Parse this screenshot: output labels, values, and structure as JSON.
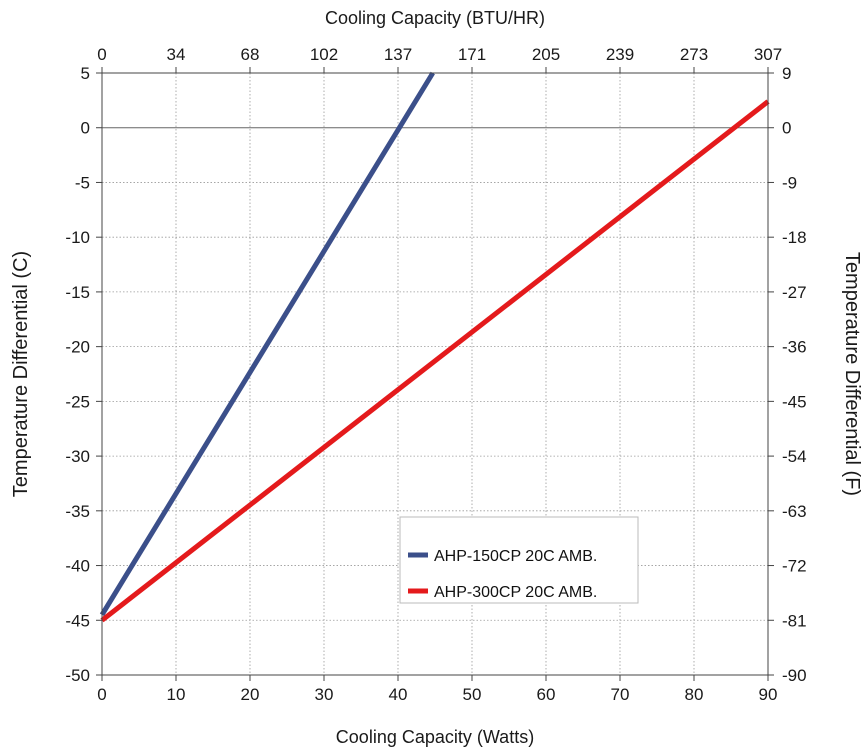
{
  "chart_data": {
    "type": "line",
    "x_bottom": {
      "label": "Cooling Capacity (Watts)",
      "range": [
        0,
        90
      ],
      "ticks": [
        "0",
        "10",
        "20",
        "30",
        "40",
        "50",
        "60",
        "70",
        "80",
        "90"
      ]
    },
    "x_top": {
      "label": "Cooling Capacity (BTU/HR)",
      "ticks": [
        "0",
        "34",
        "68",
        "102",
        "137",
        "171",
        "205",
        "239",
        "273",
        "307"
      ]
    },
    "y_left": {
      "label": "Temperature Differential (C)",
      "range": [
        -50,
        5
      ],
      "ticks": [
        "5",
        "0",
        "-5",
        "-10",
        "-15",
        "-20",
        "-25",
        "-30",
        "-35",
        "-40",
        "-45",
        "-50"
      ]
    },
    "y_right": {
      "label": "Temperature Differential (F)",
      "ticks": [
        "9",
        "0",
        "-9",
        "-18",
        "-27",
        "-36",
        "-45",
        "-54",
        "-63",
        "-72",
        "-81",
        "-90"
      ]
    },
    "grid": true,
    "legend_position": "lower-center-right",
    "series": [
      {
        "name": "AHP-150CP 20C AMB.",
        "color": "#3b4f8a",
        "x": [
          0,
          44.7
        ],
        "y": [
          -44.5,
          5
        ]
      },
      {
        "name": "AHP-300CP 20C AMB.",
        "color": "#e41a1c",
        "x": [
          0,
          90
        ],
        "y": [
          -45,
          2.4
        ]
      }
    ]
  }
}
